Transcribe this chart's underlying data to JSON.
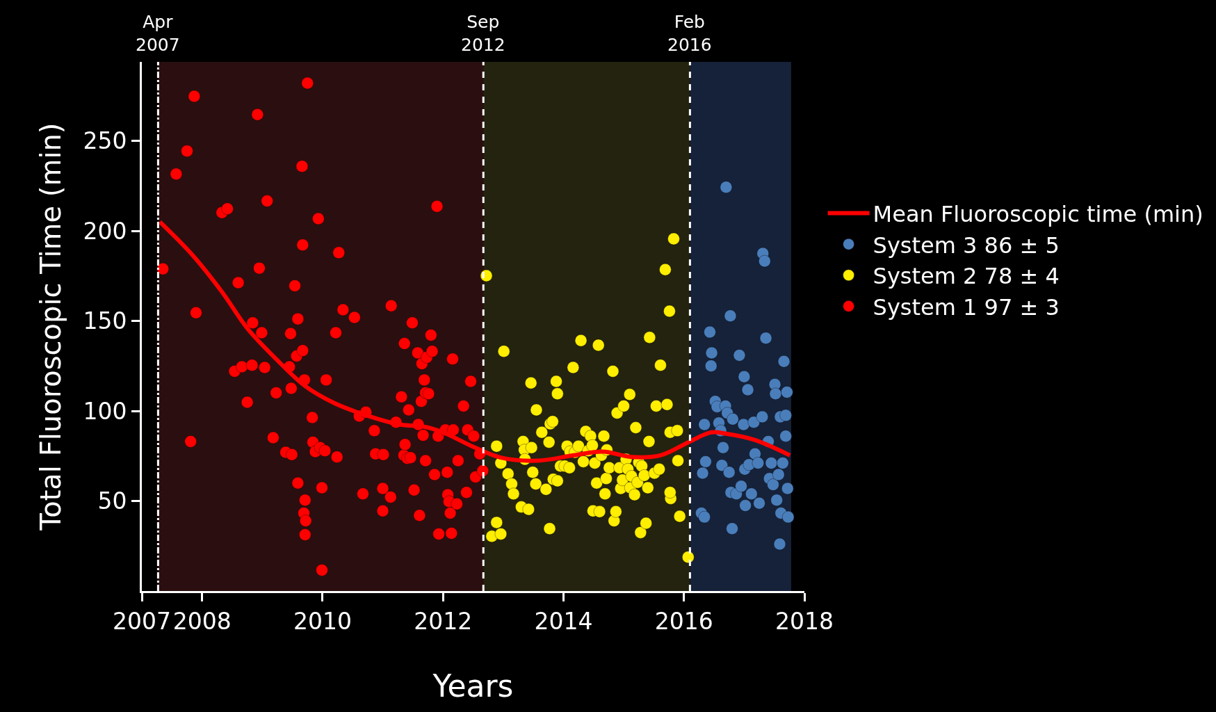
{
  "chart_data": {
    "type": "scatter",
    "xlabel": "Years",
    "ylabel": "Total Fluoroscopic Time (min)",
    "xlim": [
      2007,
      2018
    ],
    "xticks": [
      2007,
      2008,
      2010,
      2012,
      2014,
      2016,
      2018
    ],
    "ylim": [
      0,
      294
    ],
    "yticks": [
      50,
      100,
      150,
      200,
      250
    ],
    "grid": false,
    "legend": "right",
    "marker": "circle",
    "bands": [
      {
        "axis": "x",
        "from": 2007.27,
        "to": 2012.67,
        "color": "#2b0f10"
      },
      {
        "axis": "x",
        "from": 2012.67,
        "to": 2016.1,
        "color": "#23230f"
      },
      {
        "axis": "x",
        "from": 2016.1,
        "to": 2017.78,
        "color": "#16223a"
      }
    ],
    "ref_lines": [
      {
        "axis": "x",
        "value": 2007.27,
        "label": "Apr\n2007",
        "line_style": "dashdot",
        "color": "#ffffff"
      },
      {
        "axis": "x",
        "value": 2012.67,
        "label": "Sep\n2012",
        "line_style": "dashed",
        "color": "#ffffff"
      },
      {
        "axis": "x",
        "value": 2016.1,
        "label": "Feb\n2016",
        "line_style": "dashed",
        "color": "#ffffff"
      }
    ],
    "series": [
      {
        "name": "Mean Fluoroscopic time (min)",
        "type": "line",
        "marker": "none",
        "color": "#ff0000",
        "x": [
          2007.3,
          2007.84,
          2008.33,
          2008.75,
          2009.23,
          2009.71,
          2010.19,
          2010.8,
          2011.28,
          2011.7,
          2012.0,
          2012.48,
          2012.96,
          2013.57,
          2014.17,
          2014.65,
          2015.13,
          2015.61,
          2016.1,
          2016.46,
          2016.7,
          2017.18,
          2017.76
        ],
        "values": [
          205.1,
          186.7,
          166.2,
          146.0,
          128.9,
          113.9,
          104.5,
          96.8,
          92.5,
          91.2,
          88.2,
          80.5,
          74.1,
          72.4,
          75.4,
          77.5,
          74.5,
          75.4,
          83.1,
          88.2,
          87.4,
          83.9,
          75.4
        ]
      },
      {
        "name": "System 1 97 ± 3",
        "color": "#ff0000",
        "x": [
          2007.35,
          2007.57,
          2007.75,
          2007.87,
          2007.81,
          2007.9,
          2008.33,
          2008.42,
          2008.6,
          2008.54,
          2008.66,
          2008.75,
          2008.83,
          2008.84,
          2008.92,
          2008.95,
          2008.99,
          2009.04,
          2009.08,
          2009.18,
          2009.23,
          2009.39,
          2009.47,
          2009.49,
          2009.45,
          2009.48,
          2009.54,
          2009.57,
          2009.59,
          2009.59,
          2009.66,
          2009.67,
          2009.67,
          2009.7,
          2009.69,
          2009.71,
          2009.71,
          2009.72,
          2009.75,
          2009.83,
          2009.84,
          2009.88,
          2009.93,
          2009.96,
          2009.99,
          2009.99,
          2010.04,
          2010.06,
          2010.22,
          2010.24,
          2010.27,
          2010.34,
          2010.53,
          2010.61,
          2010.67,
          2010.72,
          2010.86,
          2010.88,
          2011.0,
          2011.01,
          2011.0,
          2011.13,
          2011.14,
          2011.22,
          2011.31,
          2011.35,
          2011.36,
          2011.37,
          2011.41,
          2011.43,
          2011.46,
          2011.49,
          2011.52,
          2011.58,
          2011.59,
          2011.61,
          2011.64,
          2011.65,
          2011.67,
          2011.71,
          2011.69,
          2011.71,
          2011.73,
          2011.76,
          2011.8,
          2011.82,
          2011.86,
          2011.9,
          2011.92,
          2011.93,
          2012.04,
          2012.07,
          2012.08,
          2012.1,
          2012.12,
          2012.14,
          2012.16,
          2012.17,
          2012.23,
          2012.25,
          2012.34,
          2012.39,
          2012.41,
          2012.46,
          2012.51,
          2012.54,
          2012.61,
          2012.66
        ],
        "values": [
          179.0,
          231.7,
          244.5,
          274.9,
          83.1,
          154.6,
          210.3,
          212.4,
          171.3,
          122.1,
          124.6,
          104.9,
          125.5,
          149.0,
          264.7,
          179.4,
          143.5,
          124.2,
          216.7,
          85.2,
          110.1,
          77.1,
          143.0,
          75.8,
          124.6,
          112.6,
          169.6,
          130.6,
          151.2,
          60.0,
          236.0,
          192.3,
          133.6,
          117.3,
          43.3,
          50.5,
          31.3,
          39.0,
          282.2,
          96.4,
          82.7,
          77.5,
          206.9,
          79.7,
          57.4,
          11.6,
          77.9,
          117.3,
          143.5,
          74.5,
          188.0,
          156.3,
          152.0,
          97.2,
          54.0,
          99.4,
          89.1,
          76.2,
          57.0,
          75.8,
          44.5,
          52.2,
          158.5,
          93.8,
          107.9,
          75.4,
          137.5,
          81.4,
          73.7,
          100.6,
          74.1,
          149.0,
          56.1,
          132.3,
          92.5,
          42.0,
          105.4,
          126.3,
          86.5,
          72.4,
          117.3,
          110.1,
          129.8,
          109.6,
          142.2,
          133.2,
          64.7,
          213.7,
          86.1,
          31.7,
          89.5,
          66.0,
          53.5,
          49.7,
          43.3,
          32.1,
          128.9,
          89.5,
          48.4,
          72.4,
          102.8,
          54.8,
          89.5,
          116.5,
          86.1,
          63.4,
          76.2,
          66.8
        ]
      },
      {
        "name": "System 2 78 ± 4",
        "color": "#ffee00",
        "x": [
          2012.72,
          2012.89,
          2012.89,
          2012.81,
          2012.96,
          2013.01,
          2012.96,
          2013.08,
          2013.14,
          2013.17,
          2013.3,
          2013.33,
          2013.35,
          2013.36,
          2013.42,
          2013.46,
          2013.47,
          2013.49,
          2013.54,
          2013.55,
          2013.64,
          2013.71,
          2013.76,
          2013.77,
          2013.78,
          2013.82,
          2013.83,
          2013.88,
          2013.9,
          2013.9,
          2013.95,
          2014.02,
          2014.06,
          2014.1,
          2014.11,
          2014.16,
          2014.19,
          2014.25,
          2014.29,
          2014.33,
          2014.37,
          2014.41,
          2014.45,
          2014.48,
          2014.49,
          2014.52,
          2014.55,
          2014.58,
          2014.6,
          2014.63,
          2014.67,
          2014.69,
          2014.71,
          2014.72,
          2014.76,
          2014.82,
          2014.84,
          2014.87,
          2014.89,
          2014.93,
          2014.95,
          2014.98,
          2015.0,
          2015.04,
          2015.07,
          2015.1,
          2015.11,
          2015.13,
          2015.18,
          2015.2,
          2015.23,
          2015.25,
          2015.28,
          2015.3,
          2015.34,
          2015.37,
          2015.4,
          2015.42,
          2015.43,
          2015.51,
          2015.54,
          2015.59,
          2015.61,
          2015.69,
          2015.72,
          2015.76,
          2015.77,
          2015.78,
          2015.83,
          2015.89,
          2015.9,
          2015.93,
          2016.07,
          2015.77
        ],
        "values": [
          175.2,
          80.5,
          38.1,
          30.4,
          31.7,
          133.2,
          71.1,
          65.1,
          59.5,
          54.0,
          46.7,
          83.1,
          78.4,
          73.2,
          45.4,
          115.6,
          79.7,
          66.0,
          59.5,
          100.6,
          88.2,
          56.5,
          82.7,
          34.7,
          92.9,
          94.2,
          62.1,
          116.5,
          109.6,
          61.2,
          69.4,
          69.4,
          80.5,
          68.5,
          77.5,
          124.2,
          77.1,
          80.5,
          139.2,
          71.9,
          88.7,
          77.9,
          86.1,
          80.9,
          44.5,
          71.1,
          60.0,
          136.6,
          44.1,
          75.4,
          86.1,
          54.0,
          62.5,
          78.4,
          68.5,
          122.1,
          39.0,
          44.1,
          98.9,
          68.5,
          57.0,
          61.7,
          102.8,
          73.2,
          67.7,
          109.2,
          57.4,
          63.8,
          53.5,
          90.8,
          60.4,
          71.5,
          32.5,
          69.4,
          64.2,
          37.7,
          57.4,
          83.1,
          140.9,
          65.5,
          102.8,
          67.7,
          125.5,
          178.6,
          103.6,
          155.5,
          88.2,
          51.4,
          195.7,
          89.1,
          72.4,
          41.5,
          18.8,
          54.8
        ]
      },
      {
        "name": "System 3 86 ± 5",
        "color": "#4a7ebb",
        "x": [
          2016.34,
          2016.36,
          2016.31,
          2016.29,
          2016.34,
          2016.43,
          2016.46,
          2016.45,
          2016.52,
          2016.55,
          2016.58,
          2016.61,
          2016.63,
          2016.65,
          2016.69,
          2016.7,
          2016.72,
          2016.75,
          2016.77,
          2016.78,
          2016.8,
          2016.81,
          2016.87,
          2016.92,
          2016.95,
          2016.99,
          2017.0,
          2017.01,
          2017.02,
          2017.06,
          2017.08,
          2017.12,
          2017.16,
          2017.18,
          2017.23,
          2017.25,
          2017.3,
          2017.31,
          2017.34,
          2017.36,
          2017.4,
          2017.42,
          2017.45,
          2017.48,
          2017.51,
          2017.52,
          2017.54,
          2017.57,
          2017.59,
          2017.6,
          2017.61,
          2017.64,
          2017.66,
          2017.69,
          2017.71,
          2017.72,
          2017.73,
          2017.69
        ],
        "values": [
          92.5,
          71.9,
          65.5,
          43.3,
          41.1,
          143.9,
          132.3,
          125.1,
          105.4,
          102.4,
          93.4,
          89.1,
          69.8,
          79.7,
          102.8,
          224.4,
          98.9,
          66.0,
          152.9,
          54.8,
          34.7,
          95.5,
          54.0,
          131.0,
          58.2,
          92.5,
          119.1,
          67.7,
          47.5,
          111.8,
          70.2,
          54.0,
          93.8,
          76.2,
          71.1,
          48.8,
          96.8,
          187.6,
          183.3,
          140.5,
          83.1,
          62.5,
          71.1,
          59.1,
          114.8,
          109.6,
          50.5,
          64.7,
          26.1,
          96.8,
          43.3,
          71.1,
          127.6,
          86.1,
          110.5,
          57.0,
          41.1,
          97.6
        ]
      }
    ]
  }
}
